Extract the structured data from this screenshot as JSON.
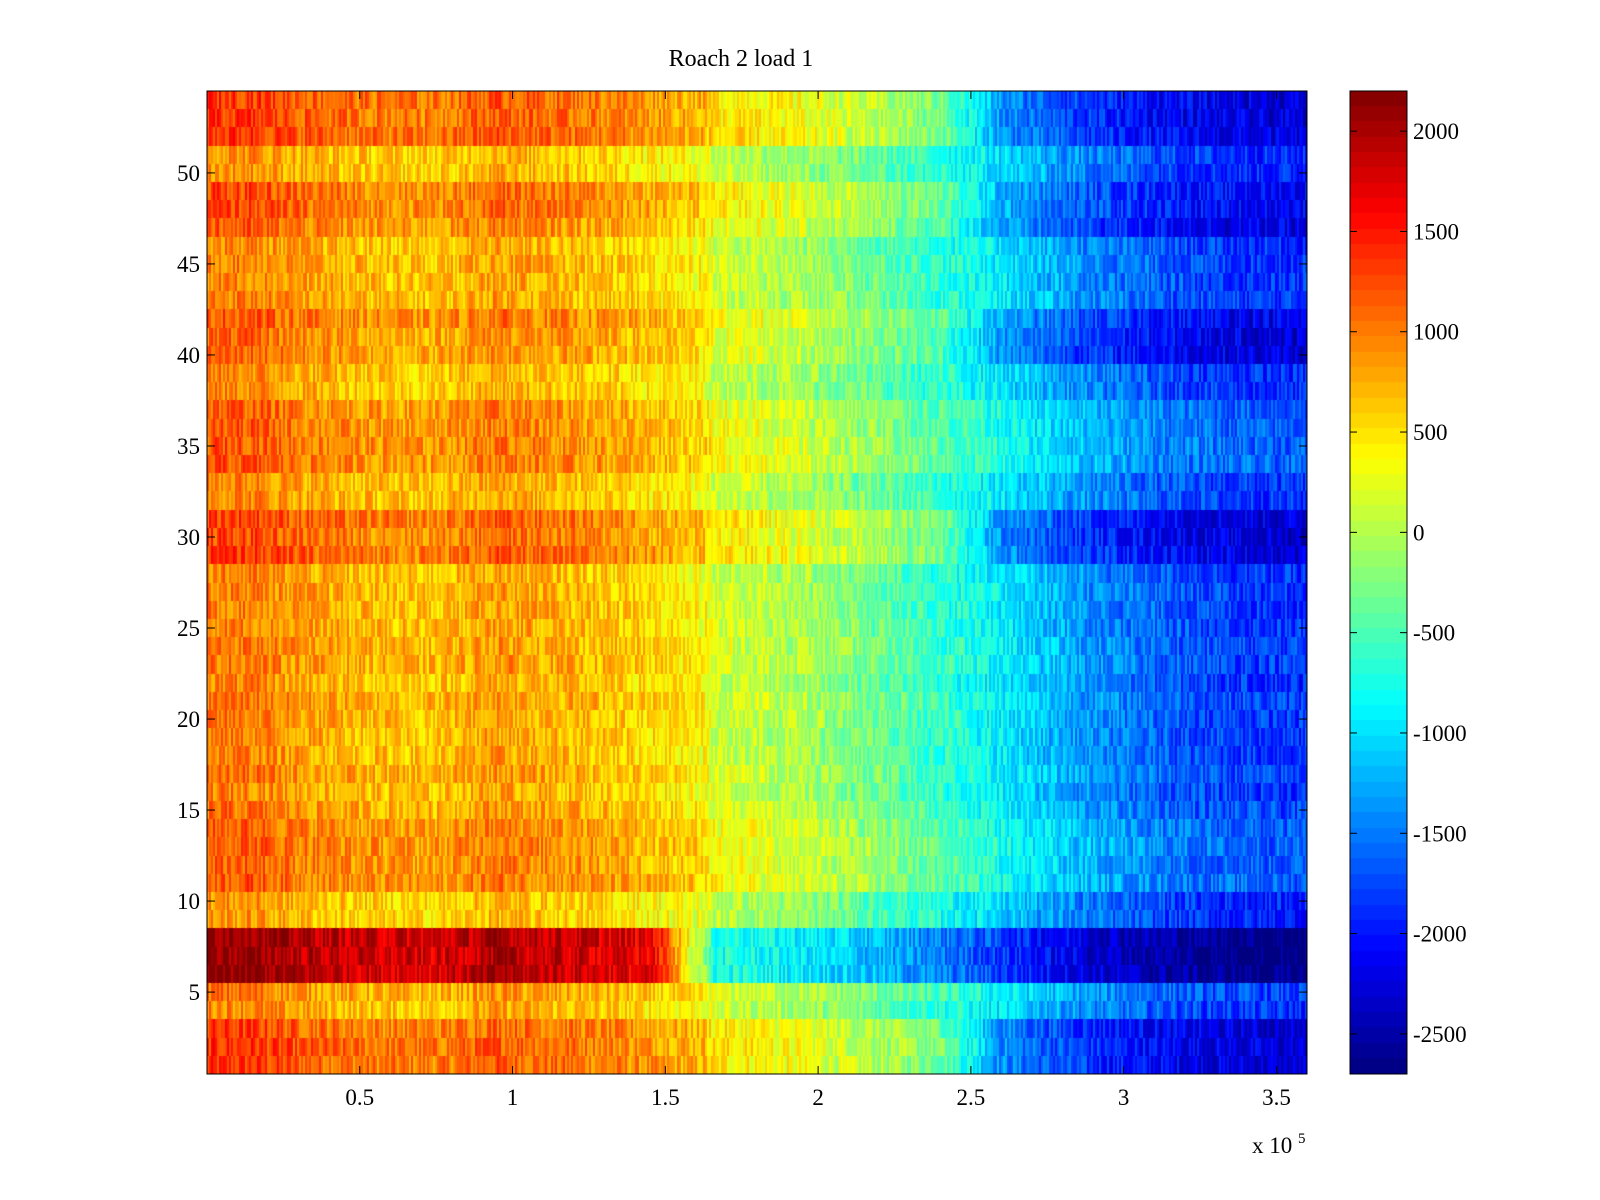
{
  "chart_data": {
    "type": "heatmap",
    "title": "Roach 2 load 1",
    "xlabel": "",
    "ylabel": "",
    "x_exponent_label": "x 10",
    "x_exponent_sup": "5",
    "xlim": [
      0,
      3.6
    ],
    "ylim": [
      0.5,
      54.5
    ],
    "x_ticks": [
      0.5,
      1,
      1.5,
      2,
      2.5,
      3,
      3.5
    ],
    "x_tick_labels": [
      "0.5",
      "1",
      "1.5",
      "2",
      "2.5",
      "3",
      "3.5"
    ],
    "y_ticks": [
      5,
      10,
      15,
      20,
      25,
      30,
      35,
      40,
      45,
      50
    ],
    "y_tick_labels": [
      "5",
      "10",
      "15",
      "20",
      "25",
      "30",
      "35",
      "40",
      "45",
      "50"
    ],
    "rows": 54,
    "colorbar": {
      "colormap": "jet",
      "clim": [
        -2700,
        2200
      ],
      "ticks": [
        2000,
        1500,
        1000,
        500,
        0,
        -500,
        -1000,
        -1500,
        -2000,
        -2500
      ],
      "tick_labels": [
        "2000",
        "1500",
        "1000",
        "500",
        "0",
        "-500",
        "-1000",
        "-1500",
        "-2000",
        "-2500"
      ]
    },
    "column_profile": {
      "x": [
        0,
        0.15,
        0.28,
        0.5,
        0.75,
        0.95,
        1.1,
        1.3,
        1.5,
        1.63,
        1.66,
        1.8,
        2.0,
        2.2,
        2.5,
        2.7,
        2.9,
        3.1,
        3.3,
        3.6
      ],
      "value": [
        1000,
        1000,
        850,
        700,
        650,
        850,
        750,
        650,
        500,
        380,
        150,
        80,
        -100,
        -350,
        -750,
        -1100,
        -1400,
        -1600,
        -1750,
        -1850
      ]
    },
    "row_offsets": [
      {
        "rows": [
          1,
          3
        ],
        "offset": 300,
        "fade_from_x": 2.6,
        "fade_offset": -500
      },
      {
        "rows": [
          6,
          8
        ],
        "offset": 1100,
        "fade_from_x": 1.66,
        "fade_offset": -900
      },
      {
        "rows": [
          4,
          5
        ],
        "offset": 0
      },
      {
        "rows": [
          9,
          10
        ],
        "offset": -150
      },
      {
        "rows": [
          11,
          14
        ],
        "offset": 200
      },
      {
        "rows": [
          15,
          28
        ],
        "offset": 0
      },
      {
        "rows": [
          29,
          31
        ],
        "offset": 300,
        "fade_from_x": 2.6,
        "fade_offset": -450
      },
      {
        "rows": [
          32,
          33
        ],
        "offset": 0
      },
      {
        "rows": [
          34,
          37
        ],
        "offset": 150
      },
      {
        "rows": [
          38,
          39
        ],
        "offset": -100
      },
      {
        "rows": [
          40,
          42
        ],
        "offset": 150,
        "fade_from_x": 2.6,
        "fade_offset": -400
      },
      {
        "rows": [
          43,
          46
        ],
        "offset": 0
      },
      {
        "rows": [
          47,
          49
        ],
        "offset": 200,
        "fade_from_x": 2.6,
        "fade_offset": -350
      },
      {
        "rows": [
          50,
          51
        ],
        "offset": -100
      },
      {
        "rows": [
          52,
          54
        ],
        "offset": 350,
        "fade_from_x": 2.6,
        "fade_offset": -450
      }
    ],
    "noise_amplitude": 320
  }
}
